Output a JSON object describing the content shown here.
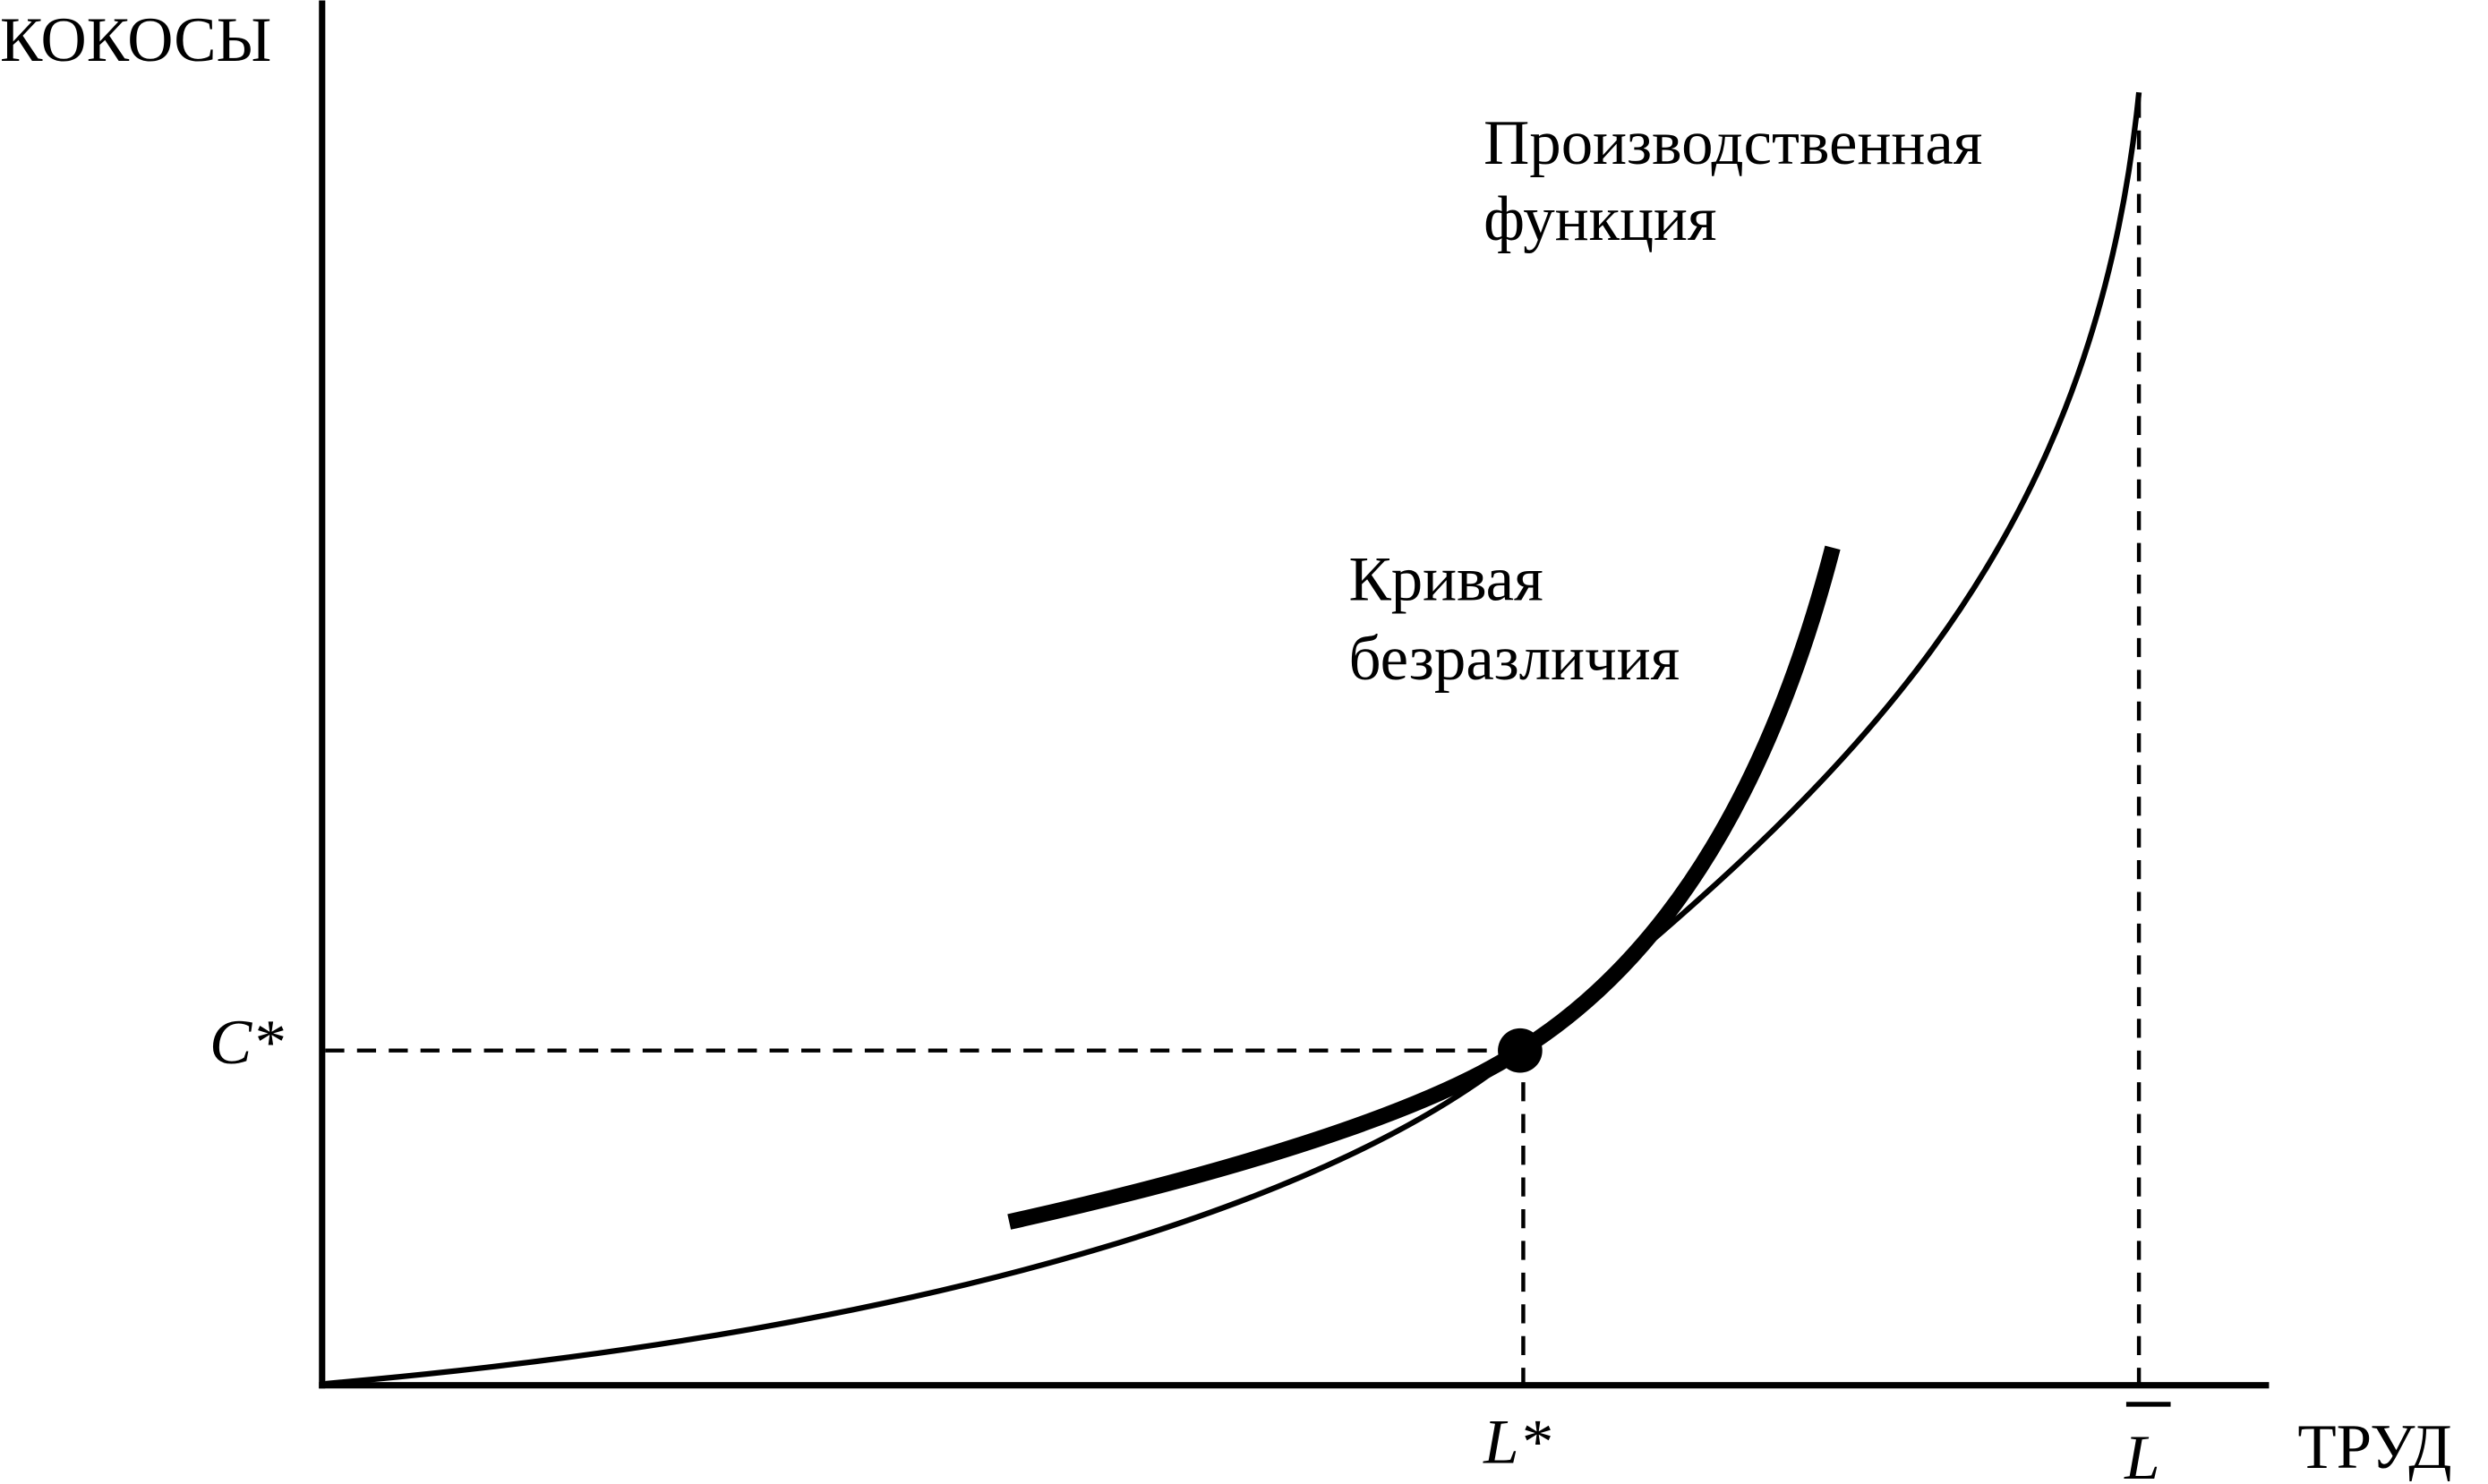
{
  "y_axis_label": "КОКОСЫ",
  "x_axis_label": "ТРУД",
  "labels": {
    "production_function": [
      "Производственная",
      "функция"
    ],
    "indifference_curve": [
      "Кривая",
      "безразличия"
    ],
    "c_star": "C*",
    "l_star": "L*",
    "l_bar": "L"
  }
}
